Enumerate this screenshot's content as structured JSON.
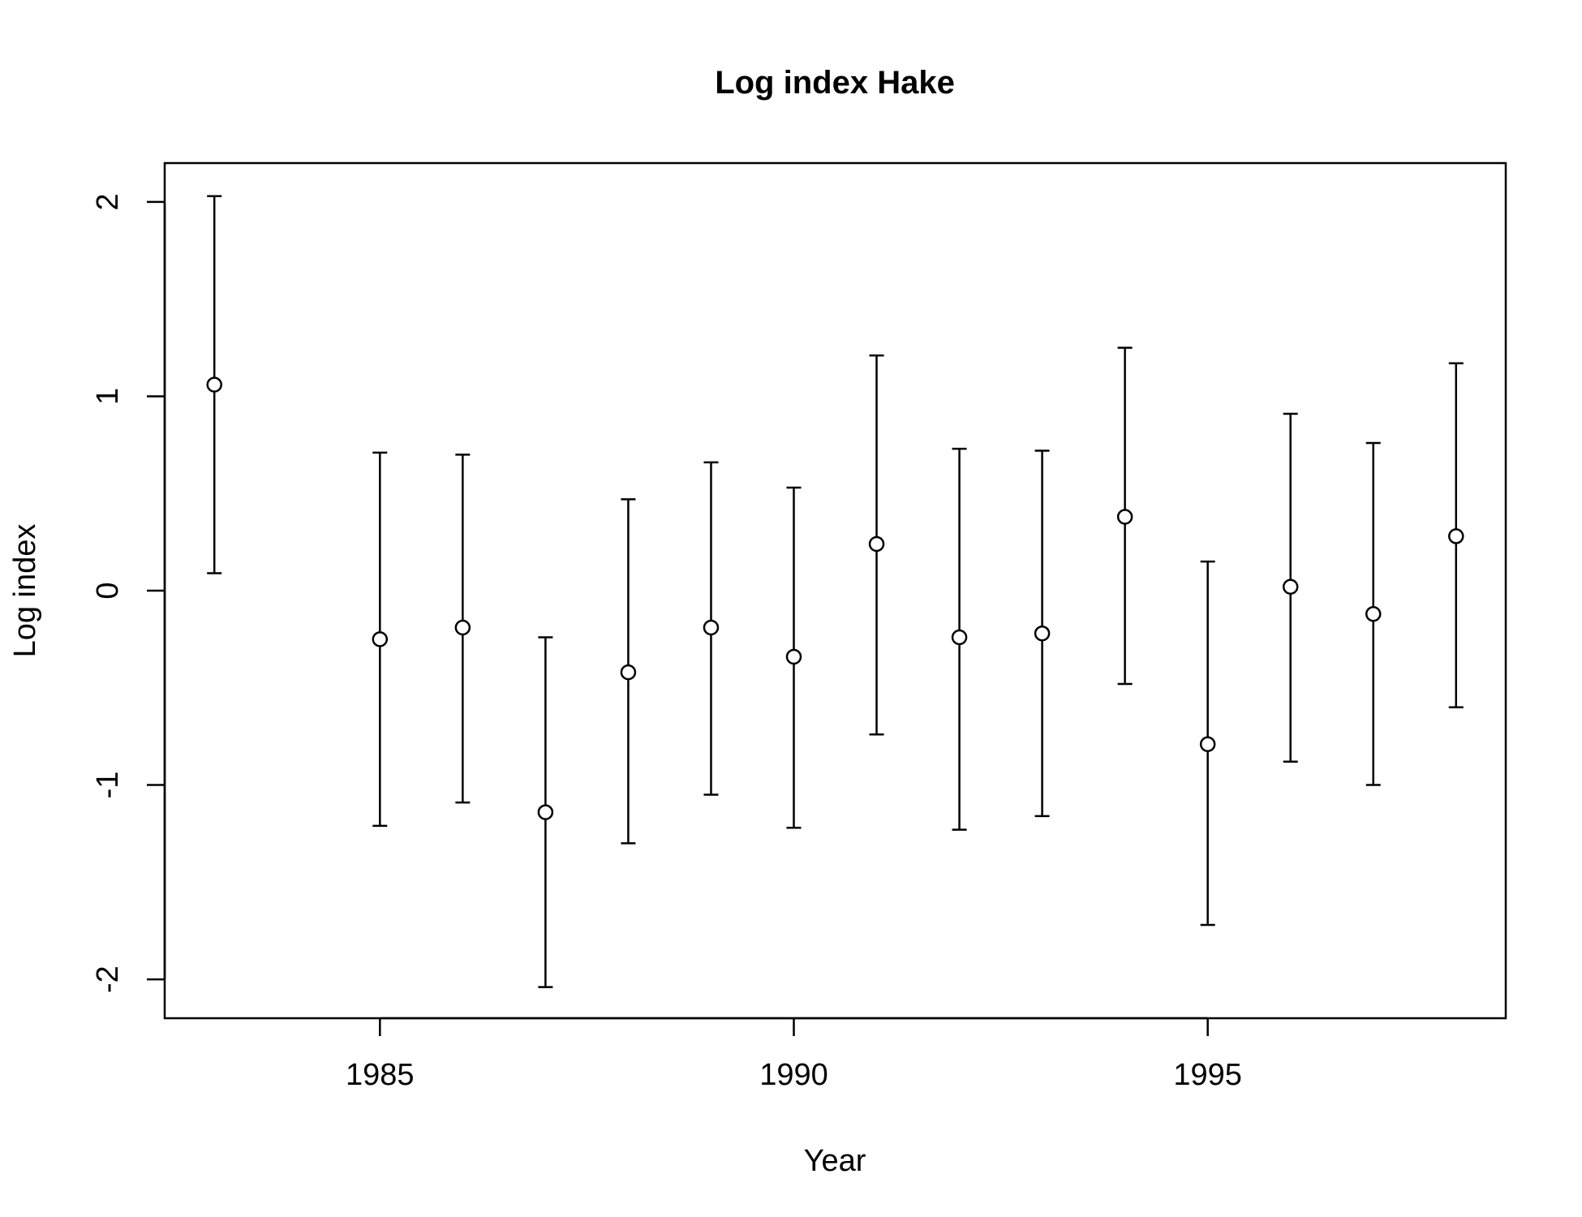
{
  "chart_data": {
    "type": "scatter",
    "title": "Log index Hake",
    "xlabel": "Year",
    "ylabel": "Log index",
    "xlim": [
      1982.4,
      1998.6
    ],
    "ylim": [
      -2.2,
      2.2
    ],
    "x_ticks": [
      1985,
      1990,
      1995
    ],
    "y_ticks": [
      -2,
      -1,
      0,
      1,
      2
    ],
    "grid": false,
    "legend": "none",
    "marker": "open-circle",
    "error_bars": true,
    "points": [
      {
        "x": 1983,
        "y": 1.06,
        "lower": 0.09,
        "upper": 2.03
      },
      {
        "x": 1985,
        "y": -0.25,
        "lower": -1.21,
        "upper": 0.71
      },
      {
        "x": 1986,
        "y": -0.19,
        "lower": -1.09,
        "upper": 0.7
      },
      {
        "x": 1987,
        "y": -1.14,
        "lower": -2.04,
        "upper": -0.24
      },
      {
        "x": 1988,
        "y": -0.42,
        "lower": -1.3,
        "upper": 0.47
      },
      {
        "x": 1989,
        "y": -0.19,
        "lower": -1.05,
        "upper": 0.66
      },
      {
        "x": 1990,
        "y": -0.34,
        "lower": -1.22,
        "upper": 0.53
      },
      {
        "x": 1991,
        "y": 0.24,
        "lower": -0.74,
        "upper": 1.21
      },
      {
        "x": 1992,
        "y": -0.24,
        "lower": -1.23,
        "upper": 0.73
      },
      {
        "x": 1993,
        "y": -0.22,
        "lower": -1.16,
        "upper": 0.72
      },
      {
        "x": 1994,
        "y": 0.38,
        "lower": -0.48,
        "upper": 1.25
      },
      {
        "x": 1995,
        "y": -0.79,
        "lower": -1.72,
        "upper": 0.15
      },
      {
        "x": 1996,
        "y": 0.02,
        "lower": -0.88,
        "upper": 0.91
      },
      {
        "x": 1997,
        "y": -0.12,
        "lower": -1.0,
        "upper": 0.76
      },
      {
        "x": 1998,
        "y": 0.28,
        "lower": -0.6,
        "upper": 1.17
      }
    ],
    "colors": {
      "line": "#000000",
      "marker_fill": "#ffffff",
      "background": "#ffffff"
    }
  }
}
